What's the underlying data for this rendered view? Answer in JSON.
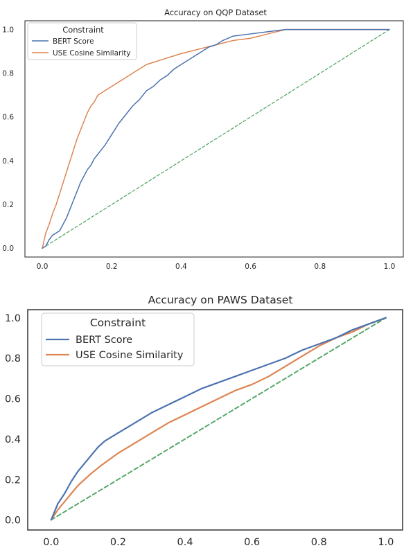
{
  "chart_data": [
    {
      "type": "line",
      "title": "Accuracy on QQP Dataset",
      "xlabel": "",
      "ylabel": "",
      "xlim": [
        -0.05,
        1.04
      ],
      "ylim": [
        -0.04,
        1.04
      ],
      "xticks": [
        0.0,
        0.2,
        0.4,
        0.6,
        0.8,
        1.0
      ],
      "xtick_labels": [
        "0.0",
        "0.2",
        "0.4",
        "0.6",
        "0.8",
        "1.0"
      ],
      "yticks": [
        0.0,
        0.2,
        0.4,
        0.6,
        0.8,
        1.0
      ],
      "ytick_labels": [
        "0.0",
        "0.2",
        "0.4",
        "0.6",
        "0.8",
        "1.0"
      ],
      "grid": false,
      "legend": {
        "title": "Constraint",
        "placement": "top-left"
      },
      "series": [
        {
          "name": "BERT Score",
          "color": "#4c72b0",
          "x": [
            0.0,
            0.01,
            0.02,
            0.03,
            0.05,
            0.06,
            0.07,
            0.08,
            0.09,
            0.1,
            0.11,
            0.12,
            0.13,
            0.14,
            0.15,
            0.16,
            0.18,
            0.2,
            0.22,
            0.24,
            0.26,
            0.28,
            0.3,
            0.32,
            0.34,
            0.36,
            0.38,
            0.4,
            0.42,
            0.44,
            0.46,
            0.48,
            0.5,
            0.52,
            0.55,
            0.6,
            0.65,
            0.7,
            0.8,
            0.9,
            1.0
          ],
          "y": [
            0.0,
            0.01,
            0.04,
            0.06,
            0.08,
            0.11,
            0.14,
            0.18,
            0.22,
            0.26,
            0.3,
            0.33,
            0.36,
            0.38,
            0.41,
            0.43,
            0.47,
            0.52,
            0.57,
            0.61,
            0.65,
            0.68,
            0.72,
            0.74,
            0.77,
            0.79,
            0.82,
            0.84,
            0.86,
            0.88,
            0.9,
            0.92,
            0.93,
            0.95,
            0.97,
            0.98,
            0.99,
            1.0,
            1.0,
            1.0,
            1.0
          ]
        },
        {
          "name": "USE Cosine Similarity",
          "color": "#dd8452",
          "x": [
            0.0,
            0.01,
            0.02,
            0.03,
            0.04,
            0.05,
            0.06,
            0.07,
            0.08,
            0.09,
            0.1,
            0.11,
            0.12,
            0.13,
            0.14,
            0.15,
            0.16,
            0.18,
            0.2,
            0.22,
            0.24,
            0.26,
            0.28,
            0.3,
            0.32,
            0.34,
            0.36,
            0.38,
            0.4,
            0.45,
            0.5,
            0.55,
            0.6,
            0.65,
            0.7,
            0.8,
            0.9,
            1.0
          ],
          "y": [
            0.0,
            0.07,
            0.11,
            0.16,
            0.2,
            0.25,
            0.3,
            0.35,
            0.4,
            0.45,
            0.5,
            0.54,
            0.58,
            0.62,
            0.65,
            0.67,
            0.7,
            0.72,
            0.74,
            0.76,
            0.78,
            0.8,
            0.82,
            0.84,
            0.85,
            0.86,
            0.87,
            0.88,
            0.89,
            0.91,
            0.93,
            0.95,
            0.96,
            0.98,
            1.0,
            1.0,
            1.0,
            1.0
          ]
        },
        {
          "name": "",
          "color": "#55a868",
          "dashed": true,
          "x": [
            0.0,
            1.0
          ],
          "y": [
            0.0,
            1.0
          ]
        }
      ]
    },
    {
      "type": "line",
      "title": "Accuracy on PAWS Dataset",
      "xlabel": "",
      "ylabel": "",
      "xlim": [
        -0.07,
        1.05
      ],
      "ylim": [
        -0.05,
        1.04
      ],
      "xticks": [
        0.0,
        0.2,
        0.4,
        0.6,
        0.8,
        1.0
      ],
      "xtick_labels": [
        "0.0",
        "0.2",
        "0.4",
        "0.6",
        "0.8",
        "1.0"
      ],
      "yticks": [
        0.0,
        0.2,
        0.4,
        0.6,
        0.8,
        1.0
      ],
      "ytick_labels": [
        "0.0",
        "0.2",
        "0.4",
        "0.6",
        "0.8",
        "1.0"
      ],
      "grid": false,
      "legend": {
        "title": "Constraint",
        "placement": "top-left"
      },
      "series": [
        {
          "name": "BERT Score",
          "color": "#4c72b0",
          "x": [
            0.0,
            0.02,
            0.04,
            0.06,
            0.08,
            0.1,
            0.12,
            0.14,
            0.16,
            0.18,
            0.2,
            0.25,
            0.3,
            0.35,
            0.4,
            0.45,
            0.5,
            0.55,
            0.6,
            0.65,
            0.7,
            0.75,
            0.8,
            0.85,
            0.9,
            0.95,
            1.0
          ],
          "y": [
            0.0,
            0.08,
            0.13,
            0.19,
            0.24,
            0.28,
            0.32,
            0.36,
            0.39,
            0.41,
            0.43,
            0.48,
            0.53,
            0.57,
            0.61,
            0.65,
            0.68,
            0.71,
            0.74,
            0.77,
            0.8,
            0.84,
            0.87,
            0.9,
            0.94,
            0.97,
            1.0
          ]
        },
        {
          "name": "USE Cosine Similarity",
          "color": "#dd8452",
          "x": [
            0.0,
            0.02,
            0.04,
            0.06,
            0.08,
            0.1,
            0.12,
            0.15,
            0.2,
            0.25,
            0.3,
            0.35,
            0.4,
            0.45,
            0.5,
            0.55,
            0.6,
            0.65,
            0.7,
            0.75,
            0.8,
            0.85,
            0.9,
            0.95,
            1.0
          ],
          "y": [
            0.0,
            0.05,
            0.09,
            0.13,
            0.17,
            0.2,
            0.23,
            0.27,
            0.33,
            0.38,
            0.43,
            0.48,
            0.52,
            0.56,
            0.6,
            0.64,
            0.67,
            0.71,
            0.76,
            0.81,
            0.86,
            0.9,
            0.93,
            0.97,
            1.0
          ]
        },
        {
          "name": "",
          "color": "#55a868",
          "dashed": true,
          "x": [
            0.0,
            1.0
          ],
          "y": [
            0.0,
            1.0
          ]
        }
      ]
    }
  ]
}
